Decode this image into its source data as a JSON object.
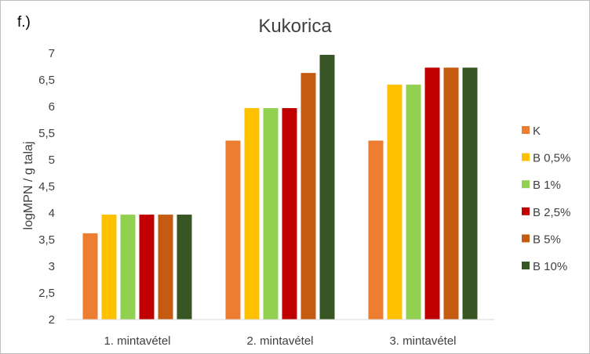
{
  "panel_label": "f.)",
  "chart_data": {
    "type": "bar",
    "title": "Kukorica",
    "xlabel": "",
    "ylabel": "logMPN / g talaj",
    "ylim": [
      2,
      7
    ],
    "yticks": [
      "2",
      "2,5",
      "3",
      "3,5",
      "4",
      "4,5",
      "5",
      "5,5",
      "6",
      "6,5",
      "7"
    ],
    "grid": false,
    "legend_position": "right",
    "categories": [
      "1. mintavétel",
      "2. mintavétel",
      "3. mintavétel"
    ],
    "series": [
      {
        "name": "K",
        "color": "#ed7d31",
        "values": [
          3.62,
          5.36,
          5.36
        ]
      },
      {
        "name": "B 0,5%",
        "color": "#ffc000",
        "values": [
          3.97,
          5.97,
          6.41
        ]
      },
      {
        "name": "B 1%",
        "color": "#92d050",
        "values": [
          3.97,
          5.97,
          6.41
        ]
      },
      {
        "name": "B 2,5%",
        "color": "#c00000",
        "values": [
          3.97,
          5.97,
          6.73
        ]
      },
      {
        "name": "B 5%",
        "color": "#c55a11",
        "values": [
          3.97,
          6.63,
          6.73
        ]
      },
      {
        "name": "B 10%",
        "color": "#375623",
        "values": [
          3.97,
          6.97,
          6.73
        ]
      }
    ]
  }
}
